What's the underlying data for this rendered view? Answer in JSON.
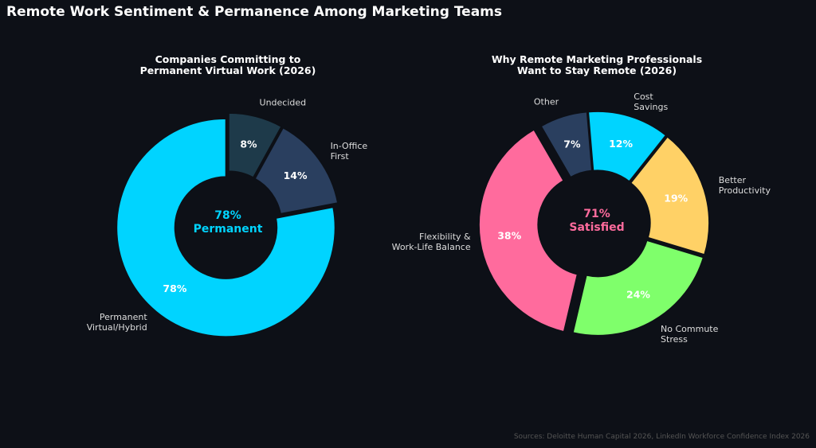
{
  "title": "Remote Work Sentiment & Permanence Among Marketing Teams",
  "chart_data": [
    {
      "type": "donut",
      "title": "Companies Committing to\nPermanent Virtual Work (2026)",
      "categories": [
        "Permanent\nVirtual/Hybrid",
        "In-Office\nFirst",
        "Undecided"
      ],
      "values": [
        78,
        14,
        8
      ],
      "value_labels": [
        "78%",
        "14%",
        "8%"
      ],
      "colors": [
        "#00d4ff",
        "#2a3f5f",
        "#1e3a4a"
      ],
      "center_text": "78%",
      "center_subtext": "Permanent",
      "center_color": "#00d4ff"
    },
    {
      "type": "donut",
      "title": "Why Remote Marketing Professionals\nWant to Stay Remote (2026)",
      "categories": [
        "Flexibility &\nWork-Life Balance",
        "No Commute\nStress",
        "Better\nProductivity",
        "Cost\nSavings",
        "Other"
      ],
      "values": [
        38,
        24,
        19,
        12,
        7
      ],
      "value_labels": [
        "38%",
        "24%",
        "19%",
        "12%",
        "7%"
      ],
      "colors": [
        "#ff6b9d",
        "#7fff6b",
        "#ffd166",
        "#00d4ff",
        "#2a3f5f"
      ],
      "center_text": "71%",
      "center_subtext": "Satisfied",
      "center_color": "#ff6b9d"
    }
  ],
  "source": "Sources: Deloitte Human Capital 2026, LinkedIn Workforce Confidence Index 2026"
}
